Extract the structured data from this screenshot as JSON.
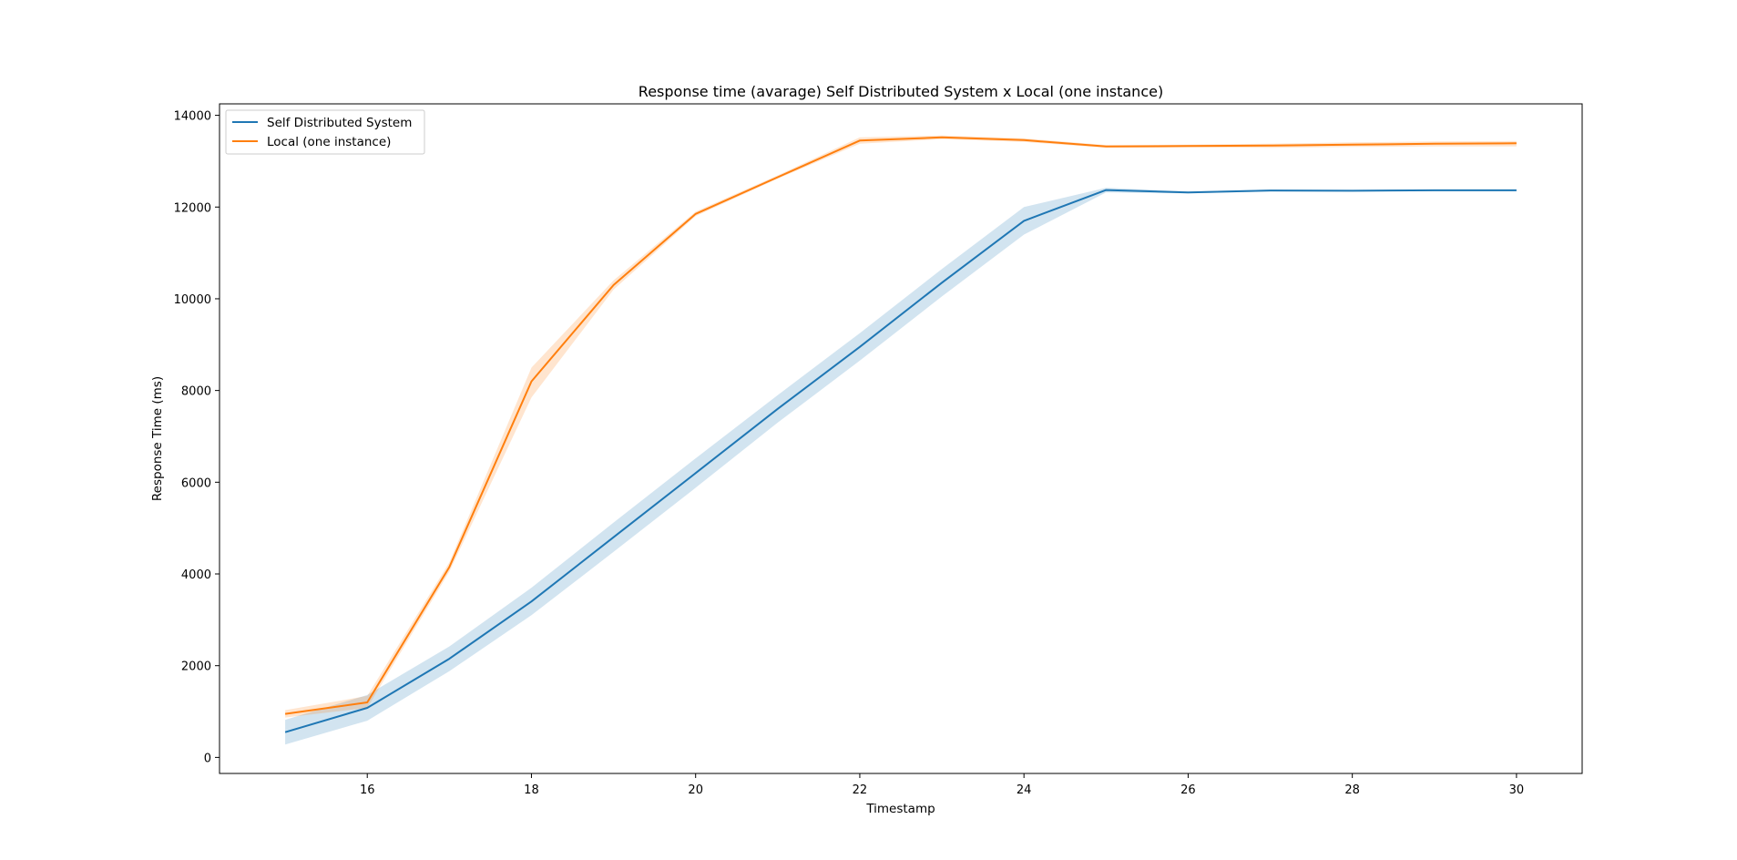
{
  "chart_data": {
    "type": "line",
    "title": "Response time (avarage) Self Distributed System x Local (one instance)",
    "xlabel": "Timestamp",
    "ylabel": "Response Time (ms)",
    "xlim": [
      14.2,
      30.8
    ],
    "ylim": [
      -350,
      14250
    ],
    "xticks": [
      16,
      18,
      20,
      22,
      24,
      26,
      28,
      30
    ],
    "yticks": [
      0,
      2000,
      4000,
      6000,
      8000,
      10000,
      12000,
      14000
    ],
    "grid": false,
    "legend_position": "upper-left",
    "series": [
      {
        "name": "Self Distributed System",
        "color": "#1f77b4",
        "x": [
          15,
          16,
          17,
          18,
          19,
          20,
          21,
          22,
          23,
          24,
          25,
          26,
          27,
          28,
          29,
          30
        ],
        "y": [
          550,
          1080,
          2150,
          3400,
          4800,
          6200,
          7600,
          8950,
          10350,
          11700,
          12370,
          12320,
          12360,
          12355,
          12365,
          12365
        ],
        "ci_low": [
          280,
          800,
          1880,
          3100,
          4480,
          5880,
          7300,
          8650,
          10050,
          11400,
          12320,
          12300,
          12340,
          12335,
          12345,
          12345
        ],
        "ci_high": [
          820,
          1360,
          2420,
          3700,
          5120,
          6520,
          7900,
          9250,
          10650,
          12000,
          12420,
          12340,
          12380,
          12375,
          12385,
          12385
        ]
      },
      {
        "name": "Local (one instance)",
        "color": "#ff7f0e",
        "x": [
          15,
          16,
          17,
          18,
          19,
          20,
          21,
          22,
          23,
          24,
          25,
          26,
          27,
          28,
          29,
          30
        ],
        "y": [
          950,
          1200,
          4150,
          8200,
          10300,
          11850,
          12650,
          13450,
          13520,
          13460,
          13320,
          13330,
          13340,
          13360,
          13380,
          13390
        ],
        "ci_low": [
          870,
          1080,
          4050,
          7850,
          10200,
          11800,
          12620,
          13380,
          13480,
          13420,
          13290,
          13300,
          13290,
          13310,
          13320,
          13320
        ],
        "ci_high": [
          1030,
          1340,
          4250,
          8500,
          10400,
          11900,
          12690,
          13520,
          13560,
          13500,
          13350,
          13360,
          13380,
          13410,
          13430,
          13440
        ]
      }
    ]
  }
}
